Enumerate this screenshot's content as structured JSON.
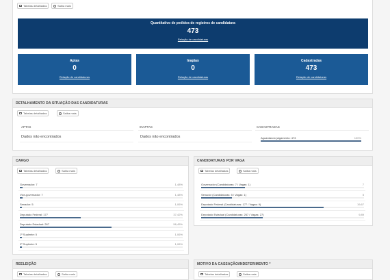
{
  "common": {
    "tables_label": "Tabelas detalhadas",
    "more_label": "Saiba mais"
  },
  "summary": {
    "total_title": "Quantitativo de pedidos de registros de candidatura",
    "total_value": "473",
    "total_link": "Relação de candidaturas",
    "cards": [
      {
        "title": "Aptas",
        "value": "0",
        "link": "Relação de candidaturas"
      },
      {
        "title": "Inaptas",
        "value": "0",
        "link": "Relação de candidaturas"
      },
      {
        "title": "Cadastradas",
        "value": "473",
        "link": "Relação de candidaturas"
      }
    ],
    "colors": {
      "dark_blue": "#0d3c6e",
      "card_blue": "#1b5a96"
    }
  },
  "detail": {
    "title": "DETALHAMENTO DA SITUAÇÃO DAS CANDIDATURAS",
    "columns": [
      {
        "header": "APTAS",
        "empty": "Dados não encontrados"
      },
      {
        "header": "INAPTAS",
        "empty": "Dados não encontrados"
      },
      {
        "header": "CADASTRADAS",
        "row_label": "Aguardando julgamento: 473",
        "row_pct": "100%",
        "fraction": 1.0
      }
    ]
  },
  "cargo": {
    "title": "CARGO",
    "rows": [
      {
        "label": "Governador: 7",
        "pct": "1,48%",
        "fraction": 0.0148
      },
      {
        "label": "Vice-governador: 7",
        "pct": "1,48%",
        "fraction": 0.0148
      },
      {
        "label": "Senador: 5",
        "pct": "1,06%",
        "fraction": 0.0106
      },
      {
        "label": "Deputado Federal: 177",
        "pct": "37,42%",
        "fraction": 0.3742
      },
      {
        "label": "Deputado Estadual: 267",
        "pct": "56,45%",
        "fraction": 0.5645
      },
      {
        "label": "1º Suplente: 5",
        "pct": "1,06%",
        "fraction": 0.0106
      },
      {
        "label": "2º Suplente: 5",
        "pct": "1,06%",
        "fraction": 0.0106
      }
    ]
  },
  "vaga": {
    "title": "CANDIDATURAS POR VAGA",
    "rows": [
      {
        "label": "Governador (Candidaturas: 7 / Vagas: 1)",
        "pct": "7",
        "fraction": 0.27
      },
      {
        "label": "Senador (Candidaturas: 5 / Vagas: 1)",
        "pct": "5",
        "fraction": 0.19
      },
      {
        "label": "Deputado Federal (Candidaturas: 177 / Vagas: 9)",
        "pct": "19,67",
        "fraction": 0.75
      },
      {
        "label": "Deputado Estadual (Candidaturas: 267 / Vagas: 27)",
        "pct": "9,89",
        "fraction": 0.38
      }
    ]
  },
  "reeleicao": {
    "title": "REELEIÇÃO"
  },
  "motivo": {
    "title": "MOTIVO DA CASSAÇÃO/INDEFERIMENTO *"
  }
}
